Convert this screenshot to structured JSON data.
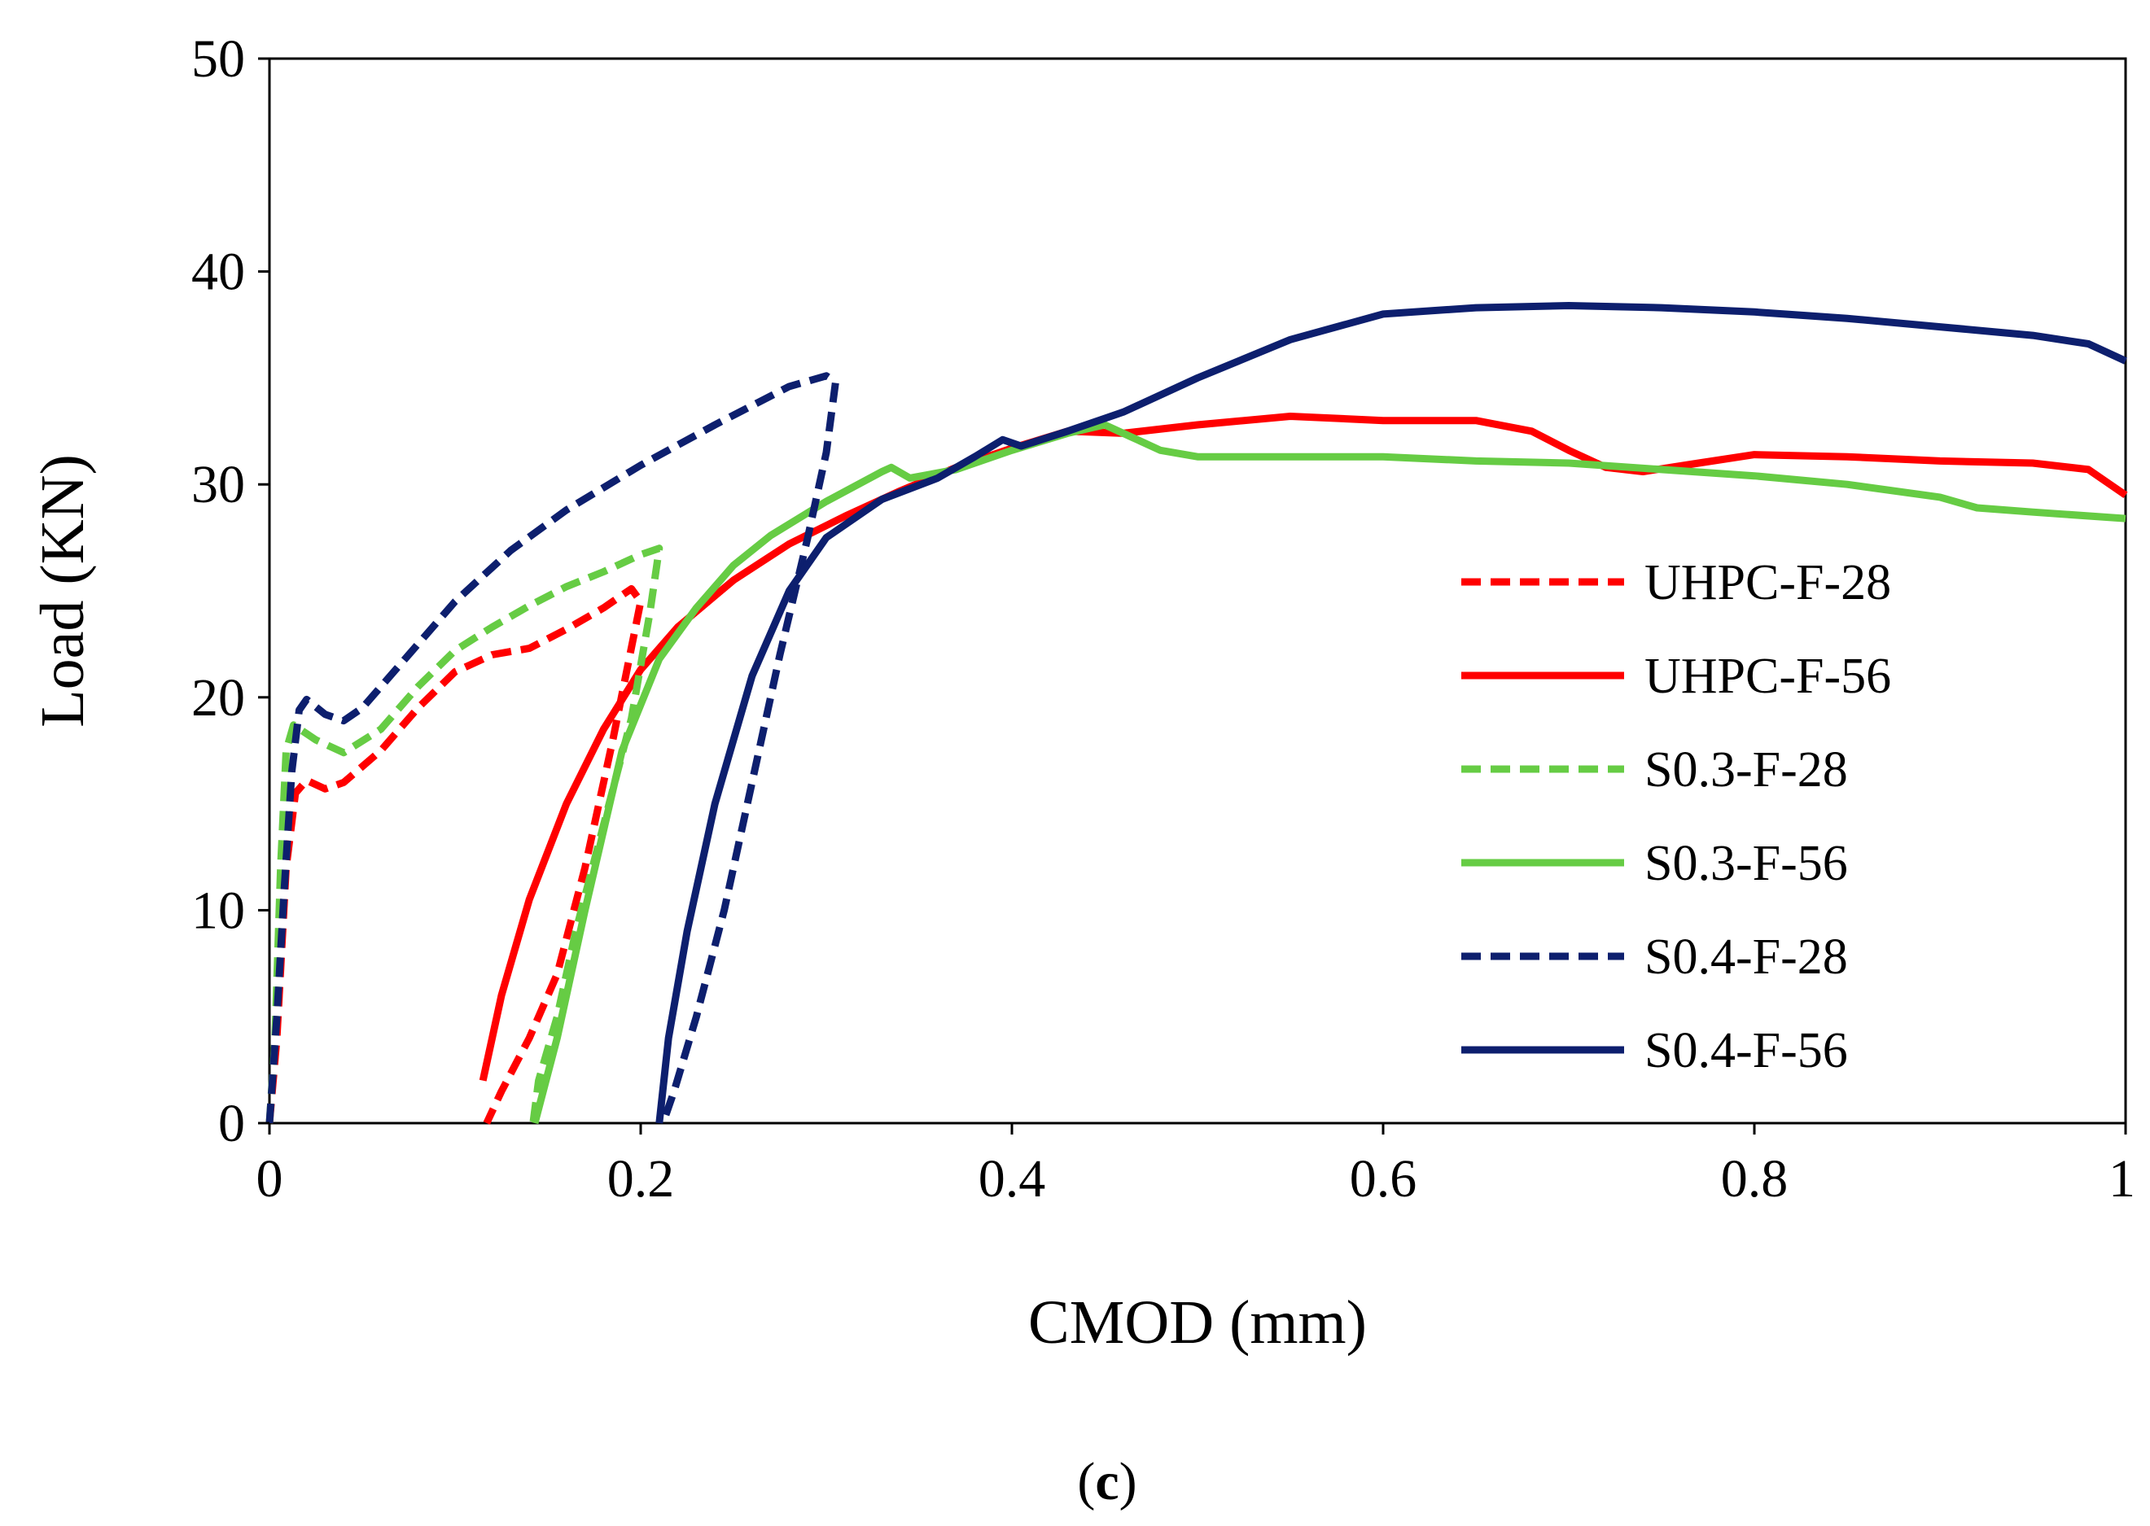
{
  "chart_data": {
    "type": "line",
    "title": "",
    "xlabel": "CMOD (mm)",
    "ylabel": "Load (KN)",
    "xlim": [
      0,
      1
    ],
    "ylim": [
      0,
      50
    ],
    "xticks": [
      0,
      0.2,
      0.4,
      0.6,
      0.8,
      1
    ],
    "xtick_labels": [
      "0",
      "0.2",
      "0.4",
      "0.6",
      "0.8",
      "1"
    ],
    "yticks": [
      0,
      10,
      20,
      30,
      40,
      50
    ],
    "ytick_labels": [
      "0",
      "10",
      "20",
      "30",
      "40",
      "50"
    ],
    "grid": false,
    "legend_position": "right",
    "caption": {
      "open": "(",
      "letter": "c",
      "close": ")"
    },
    "series": [
      {
        "name": "UHPC-F-28",
        "color": "#ff0000",
        "dashed": true,
        "points": [
          [
            0,
            0
          ],
          [
            0.004,
            4
          ],
          [
            0.009,
            12
          ],
          [
            0.014,
            15.5
          ],
          [
            0.02,
            16.1
          ],
          [
            0.03,
            15.7
          ],
          [
            0.04,
            16
          ],
          [
            0.06,
            17.5
          ],
          [
            0.08,
            19.5
          ],
          [
            0.1,
            21.2
          ],
          [
            0.12,
            22
          ],
          [
            0.14,
            22.3
          ],
          [
            0.16,
            23.2
          ],
          [
            0.18,
            24.2
          ],
          [
            0.195,
            25.1
          ],
          [
            0.2,
            24.5
          ],
          [
            0.185,
            18
          ],
          [
            0.17,
            12
          ],
          [
            0.155,
            7
          ],
          [
            0.14,
            4
          ],
          [
            0.125,
            1.5
          ],
          [
            0.117,
            0
          ]
        ]
      },
      {
        "name": "UHPC-F-56",
        "color": "#ff0000",
        "dashed": false,
        "points": [
          [
            0.115,
            2
          ],
          [
            0.125,
            6
          ],
          [
            0.14,
            10.5
          ],
          [
            0.16,
            15
          ],
          [
            0.18,
            18.5
          ],
          [
            0.2,
            21.3
          ],
          [
            0.22,
            23.3
          ],
          [
            0.25,
            25.5
          ],
          [
            0.28,
            27.2
          ],
          [
            0.31,
            28.5
          ],
          [
            0.34,
            29.7
          ],
          [
            0.37,
            30.8
          ],
          [
            0.4,
            31.7
          ],
          [
            0.43,
            32.5
          ],
          [
            0.46,
            32.4
          ],
          [
            0.5,
            32.8
          ],
          [
            0.55,
            33.2
          ],
          [
            0.6,
            33
          ],
          [
            0.65,
            33
          ],
          [
            0.68,
            32.5
          ],
          [
            0.7,
            31.6
          ],
          [
            0.72,
            30.8
          ],
          [
            0.74,
            30.6
          ],
          [
            0.77,
            31
          ],
          [
            0.8,
            31.4
          ],
          [
            0.85,
            31.3
          ],
          [
            0.9,
            31.1
          ],
          [
            0.95,
            31
          ],
          [
            0.98,
            30.7
          ],
          [
            1,
            29.5
          ]
        ]
      },
      {
        "name": "S0.3-F-28",
        "color": "#66cc44",
        "dashed": true,
        "points": [
          [
            0,
            0
          ],
          [
            0.003,
            4
          ],
          [
            0.006,
            12
          ],
          [
            0.009,
            17.5
          ],
          [
            0.013,
            18.7
          ],
          [
            0.025,
            18
          ],
          [
            0.04,
            17.4
          ],
          [
            0.06,
            18.5
          ],
          [
            0.08,
            20.5
          ],
          [
            0.1,
            22.2
          ],
          [
            0.12,
            23.3
          ],
          [
            0.14,
            24.3
          ],
          [
            0.16,
            25.2
          ],
          [
            0.18,
            25.9
          ],
          [
            0.2,
            26.7
          ],
          [
            0.21,
            27
          ],
          [
            0.205,
            24
          ],
          [
            0.195,
            19
          ],
          [
            0.18,
            14
          ],
          [
            0.165,
            9
          ],
          [
            0.155,
            5
          ],
          [
            0.145,
            2
          ],
          [
            0.142,
            0
          ]
        ]
      },
      {
        "name": "S0.3-F-56",
        "color": "#66cc44",
        "dashed": false,
        "points": [
          [
            0.143,
            0
          ],
          [
            0.155,
            4
          ],
          [
            0.17,
            10
          ],
          [
            0.19,
            17.5
          ],
          [
            0.21,
            21.8
          ],
          [
            0.23,
            24.2
          ],
          [
            0.25,
            26.2
          ],
          [
            0.27,
            27.6
          ],
          [
            0.3,
            29.2
          ],
          [
            0.33,
            30.6
          ],
          [
            0.335,
            30.8
          ],
          [
            0.345,
            30.3
          ],
          [
            0.37,
            30.7
          ],
          [
            0.4,
            31.6
          ],
          [
            0.43,
            32.4
          ],
          [
            0.45,
            32.8
          ],
          [
            0.465,
            32.2
          ],
          [
            0.48,
            31.6
          ],
          [
            0.5,
            31.3
          ],
          [
            0.55,
            31.3
          ],
          [
            0.6,
            31.3
          ],
          [
            0.65,
            31.1
          ],
          [
            0.7,
            31
          ],
          [
            0.75,
            30.7
          ],
          [
            0.8,
            30.4
          ],
          [
            0.85,
            30
          ],
          [
            0.9,
            29.4
          ],
          [
            0.92,
            28.9
          ],
          [
            0.95,
            28.7
          ],
          [
            1,
            28.4
          ]
        ]
      },
      {
        "name": "S0.4-F-28",
        "color": "#0d1f6e",
        "dashed": true,
        "points": [
          [
            0,
            0
          ],
          [
            0.004,
            5
          ],
          [
            0.008,
            11
          ],
          [
            0.012,
            16.5
          ],
          [
            0.016,
            19.4
          ],
          [
            0.02,
            19.9
          ],
          [
            0.03,
            19.2
          ],
          [
            0.04,
            18.9
          ],
          [
            0.05,
            19.5
          ],
          [
            0.07,
            21.5
          ],
          [
            0.1,
            24.5
          ],
          [
            0.13,
            26.9
          ],
          [
            0.16,
            28.8
          ],
          [
            0.2,
            30.9
          ],
          [
            0.24,
            32.8
          ],
          [
            0.28,
            34.6
          ],
          [
            0.3,
            35.1
          ],
          [
            0.305,
            34.8
          ],
          [
            0.3,
            31.5
          ],
          [
            0.29,
            27.5
          ],
          [
            0.275,
            22
          ],
          [
            0.26,
            16
          ],
          [
            0.245,
            10
          ],
          [
            0.23,
            5
          ],
          [
            0.218,
            1.5
          ],
          [
            0.212,
            0
          ]
        ]
      },
      {
        "name": "S0.4-F-56",
        "color": "#0d1f6e",
        "dashed": false,
        "points": [
          [
            0.21,
            0
          ],
          [
            0.215,
            4
          ],
          [
            0.225,
            9
          ],
          [
            0.24,
            15
          ],
          [
            0.26,
            21
          ],
          [
            0.28,
            25
          ],
          [
            0.3,
            27.5
          ],
          [
            0.33,
            29.3
          ],
          [
            0.36,
            30.3
          ],
          [
            0.38,
            31.3
          ],
          [
            0.395,
            32.1
          ],
          [
            0.405,
            31.8
          ],
          [
            0.43,
            32.5
          ],
          [
            0.46,
            33.4
          ],
          [
            0.5,
            35
          ],
          [
            0.55,
            36.8
          ],
          [
            0.6,
            38
          ],
          [
            0.65,
            38.3
          ],
          [
            0.7,
            38.4
          ],
          [
            0.75,
            38.3
          ],
          [
            0.8,
            38.1
          ],
          [
            0.85,
            37.8
          ],
          [
            0.9,
            37.4
          ],
          [
            0.95,
            37
          ],
          [
            0.98,
            36.6
          ],
          [
            1,
            35.8
          ]
        ]
      }
    ]
  }
}
